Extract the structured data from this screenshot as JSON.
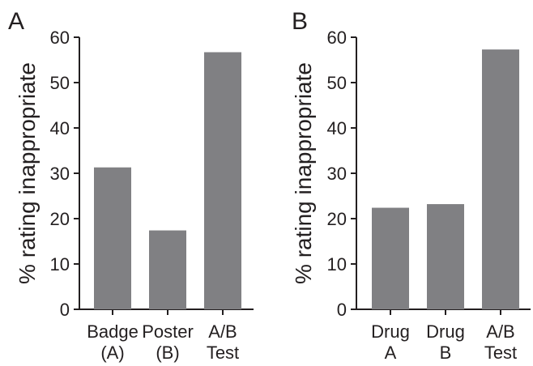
{
  "colors": {
    "bar": "#808083",
    "axis": "#231f20",
    "background": "#ffffff"
  },
  "chart_data": [
    {
      "type": "bar",
      "panel_label": "A",
      "title": "",
      "xlabel": "",
      "ylabel": "% rating inappropriate",
      "ylim": [
        0,
        60
      ],
      "yticks": [
        0,
        10,
        20,
        30,
        40,
        50,
        60
      ],
      "categories": [
        [
          "Badge",
          "(A)"
        ],
        [
          "Poster",
          "(B)"
        ],
        [
          "A/B",
          "Test"
        ]
      ],
      "values": [
        31.3,
        17.4,
        56.7
      ],
      "grid": false,
      "legend": "none"
    },
    {
      "type": "bar",
      "panel_label": "B",
      "title": "",
      "xlabel": "",
      "ylabel": "% rating inappropriate",
      "ylim": [
        0,
        60
      ],
      "yticks": [
        0,
        10,
        20,
        30,
        40,
        50,
        60
      ],
      "categories": [
        [
          "Drug",
          "A"
        ],
        [
          "Drug",
          "B"
        ],
        [
          "A/B",
          "Test"
        ]
      ],
      "values": [
        22.4,
        23.2,
        57.3
      ],
      "grid": false,
      "legend": "none"
    }
  ]
}
